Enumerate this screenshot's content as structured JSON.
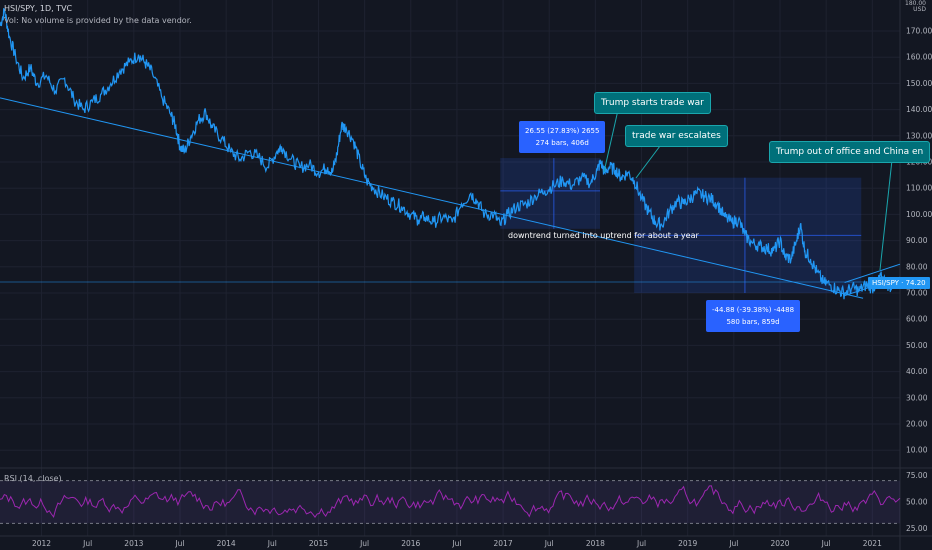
{
  "header": {
    "title": "HSI/SPY, 1D, TVC",
    "vol_note": "Vol: No volume is provided by the data vendor.",
    "unit": "USD",
    "top_label": "180.00"
  },
  "colors": {
    "background": "#131722",
    "price_line": "#2196f3",
    "trendline": "#2196f3",
    "rsi_line": "#9c27b0",
    "callout": "#00707a",
    "measure_box": "#2962ff"
  },
  "annotations": {
    "trump_trade_war": "Trump starts trade war",
    "trade_war_escalates": "trade war escalates",
    "trump_out": "Trump out of office and China en",
    "uptrend_note": "downtrend turned into uptrend for about a year",
    "measure_up_line1": "26.55 (27.83%) 2655",
    "measure_up_line2": "274 bars, 406d",
    "measure_down_line1": "-44.88 (-39.38%) -4488",
    "measure_down_line2": "580 bars, 859d",
    "last_price": "HSI/SPY · 74.20"
  },
  "rsi": {
    "label": "RSI (14, close)",
    "ticks": [
      "75.00",
      "50.00",
      "25.00"
    ],
    "upper_band": 70,
    "lower_band": 30,
    "range": [
      20,
      80
    ]
  },
  "chart_data": {
    "type": "line",
    "title": "HSI/SPY, 1D, TVC",
    "ylabel": "USD",
    "ylim": [
      0,
      180
    ],
    "y_ticks": [
      10,
      20,
      30,
      40,
      50,
      60,
      70,
      80,
      90,
      100,
      110,
      120,
      130,
      140,
      150,
      160,
      170
    ],
    "x_ticks": [
      {
        "label": "2012",
        "t": 2012.0
      },
      {
        "label": "Jul",
        "t": 2012.5
      },
      {
        "label": "2013",
        "t": 2013.0
      },
      {
        "label": "Jul",
        "t": 2013.5
      },
      {
        "label": "2014",
        "t": 2014.0
      },
      {
        "label": "Jul",
        "t": 2014.5
      },
      {
        "label": "2015",
        "t": 2015.0
      },
      {
        "label": "Jul",
        "t": 2015.5
      },
      {
        "label": "2016",
        "t": 2016.0
      },
      {
        "label": "Jul",
        "t": 2016.5
      },
      {
        "label": "2017",
        "t": 2017.0
      },
      {
        "label": "Jul",
        "t": 2017.5
      },
      {
        "label": "2018",
        "t": 2018.0
      },
      {
        "label": "Jul",
        "t": 2018.5
      },
      {
        "label": "2019",
        "t": 2019.0
      },
      {
        "label": "Jul",
        "t": 2019.5
      },
      {
        "label": "2020",
        "t": 2020.0
      },
      {
        "label": "Jul",
        "t": 2020.5
      },
      {
        "label": "2021",
        "t": 2021.0
      }
    ],
    "xlim": [
      2011.55,
      2021.3
    ],
    "series": [
      {
        "values": [
          [
            2011.55,
            172
          ],
          [
            2011.6,
            178
          ],
          [
            2011.65,
            168
          ],
          [
            2011.72,
            160
          ],
          [
            2011.8,
            152
          ],
          [
            2011.88,
            156
          ],
          [
            2011.95,
            150
          ],
          [
            2012.05,
            153
          ],
          [
            2012.15,
            147
          ],
          [
            2012.25,
            152
          ],
          [
            2012.35,
            144
          ],
          [
            2012.45,
            140
          ],
          [
            2012.55,
            143
          ],
          [
            2012.65,
            146
          ],
          [
            2012.75,
            150
          ],
          [
            2012.85,
            155
          ],
          [
            2012.95,
            158
          ],
          [
            2013.05,
            161
          ],
          [
            2013.12,
            158
          ],
          [
            2013.2,
            154
          ],
          [
            2013.3,
            145
          ],
          [
            2013.4,
            138
          ],
          [
            2013.45,
            134
          ],
          [
            2013.5,
            126
          ],
          [
            2013.55,
            124
          ],
          [
            2013.62,
            130
          ],
          [
            2013.7,
            136
          ],
          [
            2013.78,
            139
          ],
          [
            2013.85,
            133
          ],
          [
            2013.95,
            129
          ],
          [
            2014.05,
            124
          ],
          [
            2014.15,
            121
          ],
          [
            2014.25,
            124
          ],
          [
            2014.35,
            122
          ],
          [
            2014.45,
            118
          ],
          [
            2014.55,
            124
          ],
          [
            2014.6,
            126
          ],
          [
            2014.7,
            121
          ],
          [
            2014.8,
            118
          ],
          [
            2014.9,
            119
          ],
          [
            2015.0,
            116
          ],
          [
            2015.1,
            118
          ],
          [
            2015.15,
            116
          ],
          [
            2015.2,
            123
          ],
          [
            2015.25,
            134
          ],
          [
            2015.3,
            133
          ],
          [
            2015.38,
            128
          ],
          [
            2015.45,
            120
          ],
          [
            2015.52,
            113
          ],
          [
            2015.6,
            110
          ],
          [
            2015.7,
            107
          ],
          [
            2015.8,
            105
          ],
          [
            2015.9,
            103
          ],
          [
            2016.0,
            100
          ],
          [
            2016.08,
            98
          ],
          [
            2016.15,
            99
          ],
          [
            2016.25,
            97
          ],
          [
            2016.35,
            99
          ],
          [
            2016.45,
            97
          ],
          [
            2016.55,
            104
          ],
          [
            2016.65,
            108
          ],
          [
            2016.72,
            105
          ],
          [
            2016.8,
            100
          ],
          [
            2016.9,
            100
          ],
          [
            2016.97,
            96
          ],
          [
            2017.05,
            100
          ],
          [
            2017.15,
            103
          ],
          [
            2017.25,
            104
          ],
          [
            2017.35,
            107
          ],
          [
            2017.45,
            109
          ],
          [
            2017.55,
            111
          ],
          [
            2017.65,
            113
          ],
          [
            2017.75,
            111
          ],
          [
            2017.85,
            114
          ],
          [
            2017.95,
            112
          ],
          [
            2018.02,
            117
          ],
          [
            2018.06,
            120
          ],
          [
            2018.1,
            116
          ],
          [
            2018.15,
            118
          ],
          [
            2018.22,
            117
          ],
          [
            2018.28,
            114
          ],
          [
            2018.35,
            116
          ],
          [
            2018.42,
            113
          ],
          [
            2018.5,
            106
          ],
          [
            2018.58,
            101
          ],
          [
            2018.65,
            97
          ],
          [
            2018.72,
            96
          ],
          [
            2018.8,
            101
          ],
          [
            2018.88,
            105
          ],
          [
            2018.95,
            104
          ],
          [
            2019.02,
            106
          ],
          [
            2019.1,
            108
          ],
          [
            2019.18,
            107
          ],
          [
            2019.25,
            106
          ],
          [
            2019.32,
            104
          ],
          [
            2019.4,
            99
          ],
          [
            2019.48,
            97
          ],
          [
            2019.55,
            98
          ],
          [
            2019.62,
            92
          ],
          [
            2019.7,
            89
          ],
          [
            2019.78,
            88
          ],
          [
            2019.86,
            87
          ],
          [
            2019.93,
            86
          ],
          [
            2020.0,
            90
          ],
          [
            2020.05,
            84
          ],
          [
            2020.12,
            83
          ],
          [
            2020.18,
            90
          ],
          [
            2020.22,
            96
          ],
          [
            2020.27,
            86
          ],
          [
            2020.33,
            83
          ],
          [
            2020.4,
            78
          ],
          [
            2020.47,
            74
          ],
          [
            2020.55,
            73
          ],
          [
            2020.63,
            71
          ],
          [
            2020.7,
            70
          ],
          [
            2020.78,
            72
          ],
          [
            2020.86,
            71
          ],
          [
            2020.93,
            73
          ],
          [
            2021.0,
            72
          ],
          [
            2021.05,
            74
          ],
          [
            2021.1,
            76
          ],
          [
            2021.15,
            74
          ],
          [
            2021.2,
            72
          ],
          [
            2021.25,
            74.2
          ]
        ]
      }
    ],
    "trendline": [
      [
        2011.55,
        144.5
      ],
      [
        2020.9,
        68
      ]
    ],
    "last_value": 74.2
  }
}
